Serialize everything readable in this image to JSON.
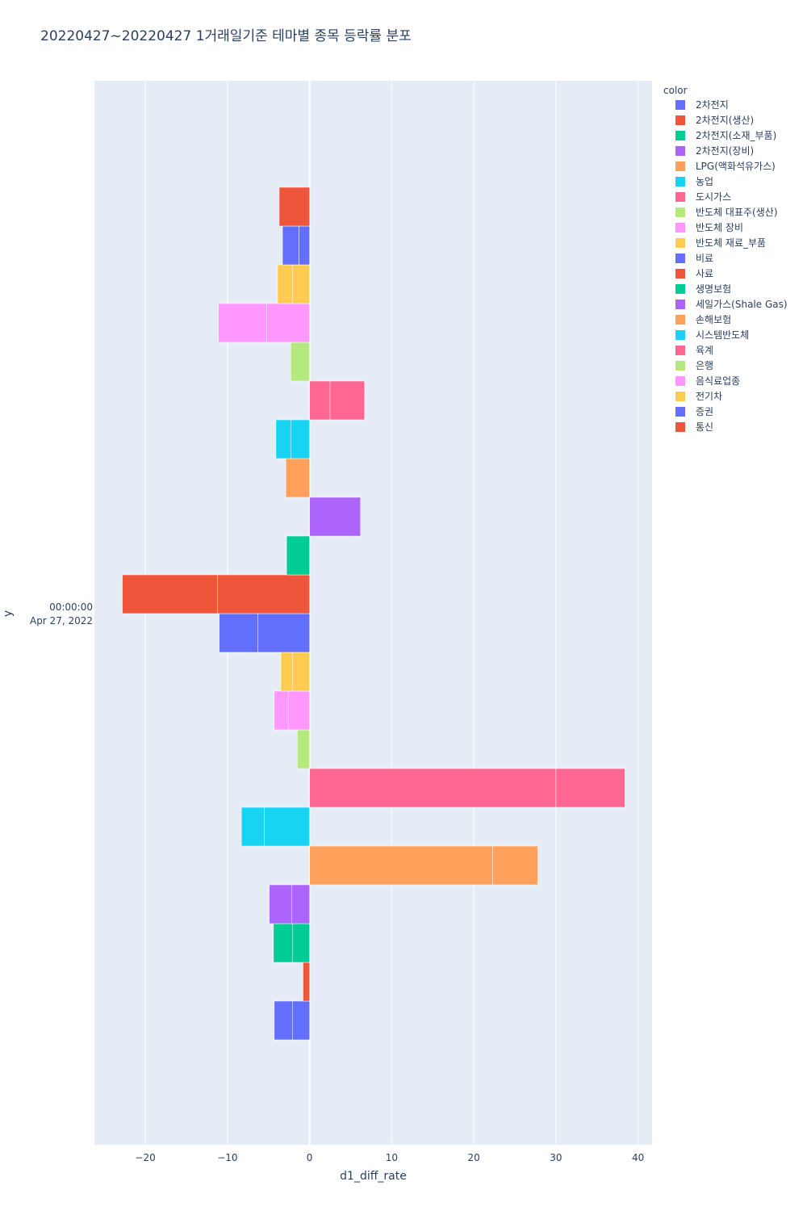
{
  "chart_data": {
    "type": "bar",
    "orientation": "horizontal",
    "barmode": "relative",
    "title": "20220427~20220427 1거래일기준 테마별 종목 등락률 분포",
    "xlabel": "d1_diff_rate",
    "ylabel": "y",
    "y_tick_line1": "00:00:00",
    "y_tick_line2": "Apr 27, 2022",
    "xlim": [
      -26.2,
      41.7
    ],
    "x_ticks": [
      -20,
      -10,
      0,
      10,
      20,
      30,
      40
    ],
    "x_tick_labels": [
      "−20",
      "−10",
      "0",
      "10",
      "20",
      "30",
      "40"
    ],
    "legend_title": "color",
    "series": [
      {
        "name": "2차전지",
        "color": "#636efa",
        "values": [
          -2.1,
          -2.2
        ]
      },
      {
        "name": "2차전지(생산)",
        "color": "#EF553B",
        "values": [
          -0.8
        ]
      },
      {
        "name": "2차전지(소재_부품)",
        "color": "#00cc96",
        "values": [
          -2.1,
          -2.3
        ]
      },
      {
        "name": "2차전지(장비)",
        "color": "#ab63fa",
        "values": [
          -2.2,
          -2.7
        ]
      },
      {
        "name": "LPG(액화석유가스)",
        "color": "#FFA15A",
        "values": [
          22.3,
          5.5
        ]
      },
      {
        "name": "농업",
        "color": "#19d3f3",
        "values": [
          -5.5,
          -2.8
        ]
      },
      {
        "name": "도시가스",
        "color": "#FF6692",
        "values": [
          30.0,
          8.4
        ]
      },
      {
        "name": "반도체 대표주(생산)",
        "color": "#B6E880",
        "values": [
          -1.5
        ]
      },
      {
        "name": "반도체 장비",
        "color": "#FF97FF",
        "values": [
          -2.6,
          -1.7
        ]
      },
      {
        "name": "반도체 재료_부품",
        "color": "#FECB52",
        "values": [
          -2.1,
          -1.4
        ]
      },
      {
        "name": "비료",
        "color": "#636efa",
        "values": [
          -6.3,
          -4.7
        ]
      },
      {
        "name": "사료",
        "color": "#EF553B",
        "values": [
          -11.2,
          -11.6
        ]
      },
      {
        "name": "생명보험",
        "color": "#00cc96",
        "values": [
          -2.8
        ]
      },
      {
        "name": "세일가스(Shale Gas)",
        "color": "#ab63fa",
        "values": [
          6.2
        ]
      },
      {
        "name": "손해보험",
        "color": "#FFA15A",
        "values": [
          -2.9
        ]
      },
      {
        "name": "시스템반도체",
        "color": "#19d3f3",
        "values": [
          -2.3,
          -1.8
        ]
      },
      {
        "name": "육계",
        "color": "#FF6692",
        "values": [
          2.5,
          4.2
        ]
      },
      {
        "name": "은행",
        "color": "#B6E880",
        "values": [
          -2.3
        ]
      },
      {
        "name": "음식료업종",
        "color": "#FF97FF",
        "values": [
          -5.2,
          -5.9
        ]
      },
      {
        "name": "전기차",
        "color": "#FECB52",
        "values": [
          -2.1,
          -1.8
        ]
      },
      {
        "name": "증권",
        "color": "#636efa",
        "values": [
          -1.3,
          -2.0
        ]
      },
      {
        "name": "통신",
        "color": "#EF553B",
        "values": [
          -3.7
        ]
      }
    ]
  }
}
